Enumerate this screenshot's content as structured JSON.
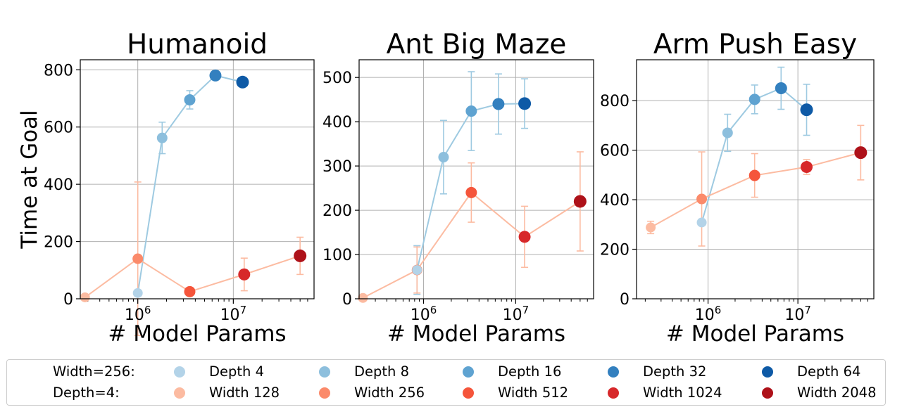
{
  "chart_data": [
    {
      "type": "scatter",
      "title": "Humanoid",
      "xlabel": "# Model Params",
      "ylabel": "Time at Goal",
      "xscale": "log",
      "xlim": [
        250000,
        70000000
      ],
      "ylim": [
        0,
        835
      ],
      "yticks": [
        0,
        200,
        400,
        600,
        800
      ],
      "xticks": [
        1000000,
        10000000
      ],
      "xtick_labels": [
        [
          "10",
          "6"
        ],
        [
          "10",
          "7"
        ]
      ],
      "grid": true,
      "series": [
        {
          "name": "Width=256",
          "color": "#9ecae1",
          "points": [
            {
              "x": 1000000,
              "y": 20,
              "err": null,
              "label": "Depth 4"
            },
            {
              "x": 1800000,
              "y": 562,
              "err": 55,
              "label": "Depth 8"
            },
            {
              "x": 3500000,
              "y": 695,
              "err": 32,
              "label": "Depth 16"
            },
            {
              "x": 6500000,
              "y": 780,
              "err": null,
              "label": "Depth 32"
            },
            {
              "x": 12500000,
              "y": 757,
              "err": null,
              "label": "Depth 64"
            }
          ]
        },
        {
          "name": "Depth=4",
          "color": "#fcbba1",
          "points": [
            {
              "x": 280000,
              "y": 5,
              "err": null,
              "label": "Width 128"
            },
            {
              "x": 1000000,
              "y": 140,
              "err": 268,
              "label": "Width 256"
            },
            {
              "x": 3500000,
              "y": 25,
              "err": null,
              "label": "Width 512"
            },
            {
              "x": 13000000,
              "y": 85,
              "err": 57,
              "label": "Width 1024"
            },
            {
              "x": 50000000,
              "y": 150,
              "err": 65,
              "label": "Width 2048"
            }
          ]
        }
      ]
    },
    {
      "type": "scatter",
      "title": "Ant Big Maze",
      "xlabel": "# Model Params",
      "ylabel": "",
      "xscale": "log",
      "xlim": [
        200000,
        70000000
      ],
      "ylim": [
        0,
        540
      ],
      "yticks": [
        0,
        100,
        200,
        300,
        400,
        500
      ],
      "xticks": [
        1000000,
        10000000
      ],
      "xtick_labels": [
        [
          "10",
          "6"
        ],
        [
          "10",
          "7"
        ]
      ],
      "grid": true,
      "series": [
        {
          "name": "Width=256",
          "color": "#9ecae1",
          "points": [
            {
              "x": 850000,
              "y": 65,
              "err": 55,
              "label": "Depth 4"
            },
            {
              "x": 1650000,
              "y": 320,
              "err": 83,
              "label": "Depth 8"
            },
            {
              "x": 3300000,
              "y": 424,
              "err": 89,
              "label": "Depth 16"
            },
            {
              "x": 6500000,
              "y": 440,
              "err": 68,
              "label": "Depth 32"
            },
            {
              "x": 12500000,
              "y": 441,
              "err": 56,
              "label": "Depth 64"
            }
          ]
        },
        {
          "name": "Depth=4",
          "color": "#fcbba1",
          "points": [
            {
              "x": 220000,
              "y": 2,
              "err": null,
              "label": "Width 128"
            },
            {
              "x": 850000,
              "y": 65,
              "err": 52,
              "label": "Width 256"
            },
            {
              "x": 3300000,
              "y": 240,
              "err": 67,
              "label": "Width 512"
            },
            {
              "x": 12500000,
              "y": 140,
              "err": 69,
              "label": "Width 1024"
            },
            {
              "x": 50000000,
              "y": 220,
              "err": 112,
              "label": "Width 2048"
            }
          ]
        }
      ]
    },
    {
      "type": "scatter",
      "title": "Arm Push Easy",
      "xlabel": "# Model Params",
      "ylabel": "",
      "xscale": "log",
      "xlim": [
        160000,
        70000000
      ],
      "ylim": [
        0,
        965
      ],
      "yticks": [
        0,
        200,
        400,
        600,
        800
      ],
      "xticks": [
        1000000,
        10000000
      ],
      "xtick_labels": [
        [
          "10",
          "6"
        ],
        [
          "10",
          "7"
        ]
      ],
      "grid": true,
      "series": [
        {
          "name": "Width=256",
          "color": "#9ecae1",
          "points": [
            {
              "x": 850000,
              "y": 308,
              "err": null,
              "label": "Depth 4"
            },
            {
              "x": 1650000,
              "y": 670,
              "err": 75,
              "label": "Depth 8"
            },
            {
              "x": 3300000,
              "y": 805,
              "err": 58,
              "label": "Depth 16"
            },
            {
              "x": 6500000,
              "y": 850,
              "err": 85,
              "label": "Depth 32"
            },
            {
              "x": 12500000,
              "y": 763,
              "err": 103,
              "label": "Depth 64"
            }
          ]
        },
        {
          "name": "Depth=4",
          "color": "#fcbba1",
          "points": [
            {
              "x": 230000,
              "y": 288,
              "err": 25,
              "label": "Width 128"
            },
            {
              "x": 850000,
              "y": 403,
              "err": 190,
              "label": "Width 256"
            },
            {
              "x": 3300000,
              "y": 498,
              "err": 88,
              "label": "Width 512"
            },
            {
              "x": 12500000,
              "y": 532,
              "err": 30,
              "label": "Width 1024"
            },
            {
              "x": 50000000,
              "y": 590,
              "err": 110,
              "label": "Width 2048"
            }
          ]
        }
      ]
    }
  ],
  "legend": {
    "row1_label": "Width=256:",
    "row2_label": "Depth=4:",
    "row1": [
      {
        "label": "Depth 4",
        "color": "#b3d3e8"
      },
      {
        "label": "Depth 8",
        "color": "#8dbfdd"
      },
      {
        "label": "Depth 16",
        "color": "#5fa3d1"
      },
      {
        "label": "Depth 32",
        "color": "#3380bf"
      },
      {
        "label": "Depth 64",
        "color": "#0e5aa6"
      }
    ],
    "row2": [
      {
        "label": "Width 128",
        "color": "#fcbba1"
      },
      {
        "label": "Width 256",
        "color": "#fb8a6a"
      },
      {
        "label": "Width 512",
        "color": "#f5553b"
      },
      {
        "label": "Width 1024",
        "color": "#d7282a"
      },
      {
        "label": "Width 2048",
        "color": "#ae1119"
      }
    ]
  }
}
